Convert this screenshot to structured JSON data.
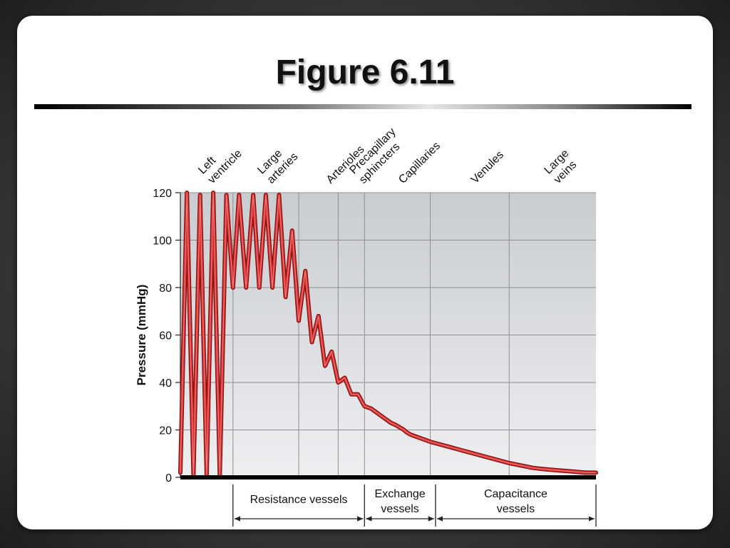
{
  "slide": {
    "title": "Figure 6.11"
  },
  "chart_data": {
    "type": "line",
    "ylabel": "Pressure (mmHg)",
    "xlabel": "",
    "ylim": [
      0,
      120
    ],
    "yticks": [
      0,
      20,
      40,
      60,
      80,
      100,
      120
    ],
    "grid": true,
    "legend": "none",
    "line_color": "#d42a2a",
    "plot_background": "#cdd0d3",
    "segments": [
      {
        "name": "Left ventricle",
        "label_lines": [
          "Left",
          "ventricle"
        ]
      },
      {
        "name": "Large arteries",
        "label_lines": [
          "Large",
          "arteries"
        ]
      },
      {
        "name": "Arterioles",
        "label_lines": [
          "Arterioles"
        ]
      },
      {
        "name": "Precapillary sphincters",
        "label_lines": [
          "Precapillary",
          "sphincters"
        ]
      },
      {
        "name": "Capillaries",
        "label_lines": [
          "Capillaries"
        ]
      },
      {
        "name": "Venules",
        "label_lines": [
          "Venules"
        ]
      },
      {
        "name": "Large veins",
        "label_lines": [
          "Large",
          "veins"
        ]
      }
    ],
    "series": [
      {
        "name": "",
        "x": [
          0.0,
          0.25,
          0.5,
          0.75,
          1.0,
          1.25,
          1.5,
          1.75,
          2.0,
          2.23,
          2.5,
          2.77,
          3.0,
          3.25,
          3.5,
          3.75,
          4.0,
          4.25,
          4.5,
          4.75,
          5.0,
          5.25,
          5.5,
          5.75,
          6.0,
          6.25,
          6.5,
          6.75,
          7.0,
          7.25,
          7.5,
          7.75,
          8.0,
          8.2,
          8.35,
          8.5,
          8.6,
          8.75,
          9.5,
          10.5,
          11.5,
          12.5,
          13.4,
          13.8,
          14.3,
          14.9,
          15.4,
          15.8
        ],
        "y": [
          2,
          120,
          1,
          119,
          1,
          120,
          1,
          119,
          80,
          119,
          80,
          119,
          80,
          119,
          80,
          119,
          76,
          104,
          66,
          87,
          57,
          68,
          47,
          53,
          40,
          42,
          35,
          35,
          30,
          29,
          27,
          25,
          23,
          22,
          21,
          20,
          19,
          18,
          15,
          12,
          9,
          6,
          4,
          3.5,
          3,
          2.5,
          2,
          2
        ]
      }
    ],
    "xlim": [
      0,
      15.8
    ],
    "segment_bounds": [
      0,
      2.0,
      4.5,
      6.5,
      7.0,
      9.5,
      12.5,
      15.8
    ],
    "brackets": [
      {
        "name": "Resistance vessels",
        "label_lines": [
          "Resistance vessels"
        ],
        "from": 2.0,
        "to": 7.0
      },
      {
        "name": "Exchange vessels",
        "label_lines": [
          "Exchange",
          "vessels"
        ],
        "from": 7.0,
        "to": 9.7
      },
      {
        "name": "Capacitance vessels",
        "label_lines": [
          "Capacitance",
          "vessels"
        ],
        "from": 9.7,
        "to": 15.8
      }
    ]
  }
}
